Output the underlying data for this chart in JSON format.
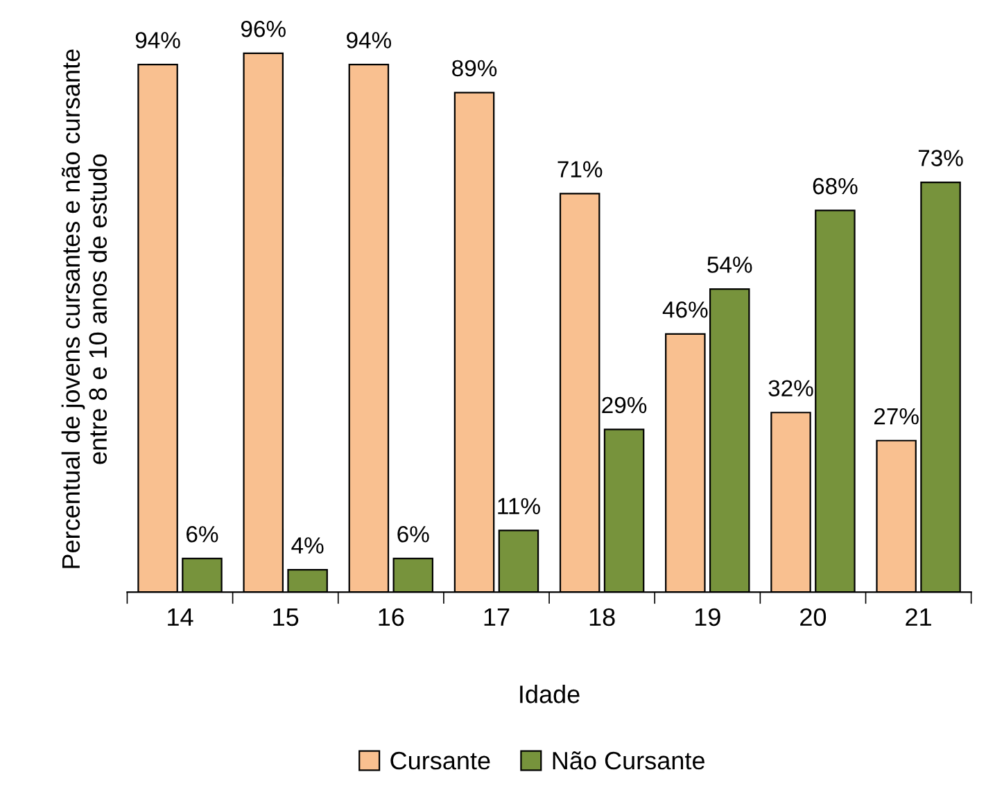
{
  "chart_data": {
    "type": "bar",
    "xlabel": "Idade",
    "ylabel": "Percentual de jovens cursantes e não cursante\nentre 8 e 10 anos de estudo",
    "categories": [
      "14",
      "15",
      "16",
      "17",
      "18",
      "19",
      "20",
      "21"
    ],
    "series": [
      {
        "name": "Cursante",
        "color": "#f9c090",
        "values": [
          94,
          96,
          94,
          89,
          71,
          46,
          32,
          27
        ],
        "value_labels": [
          "94%",
          "96%",
          "94%",
          "89%",
          "71%",
          "46%",
          "32%",
          "27%"
        ]
      },
      {
        "name": "Não Cursante",
        "color": "#77933c",
        "values": [
          6,
          4,
          6,
          11,
          29,
          54,
          68,
          73
        ],
        "value_labels": [
          "6%",
          "4%",
          "6%",
          "11%",
          "29%",
          "54%",
          "68%",
          "73%"
        ]
      }
    ],
    "legend": "bottom",
    "grid": false
  }
}
